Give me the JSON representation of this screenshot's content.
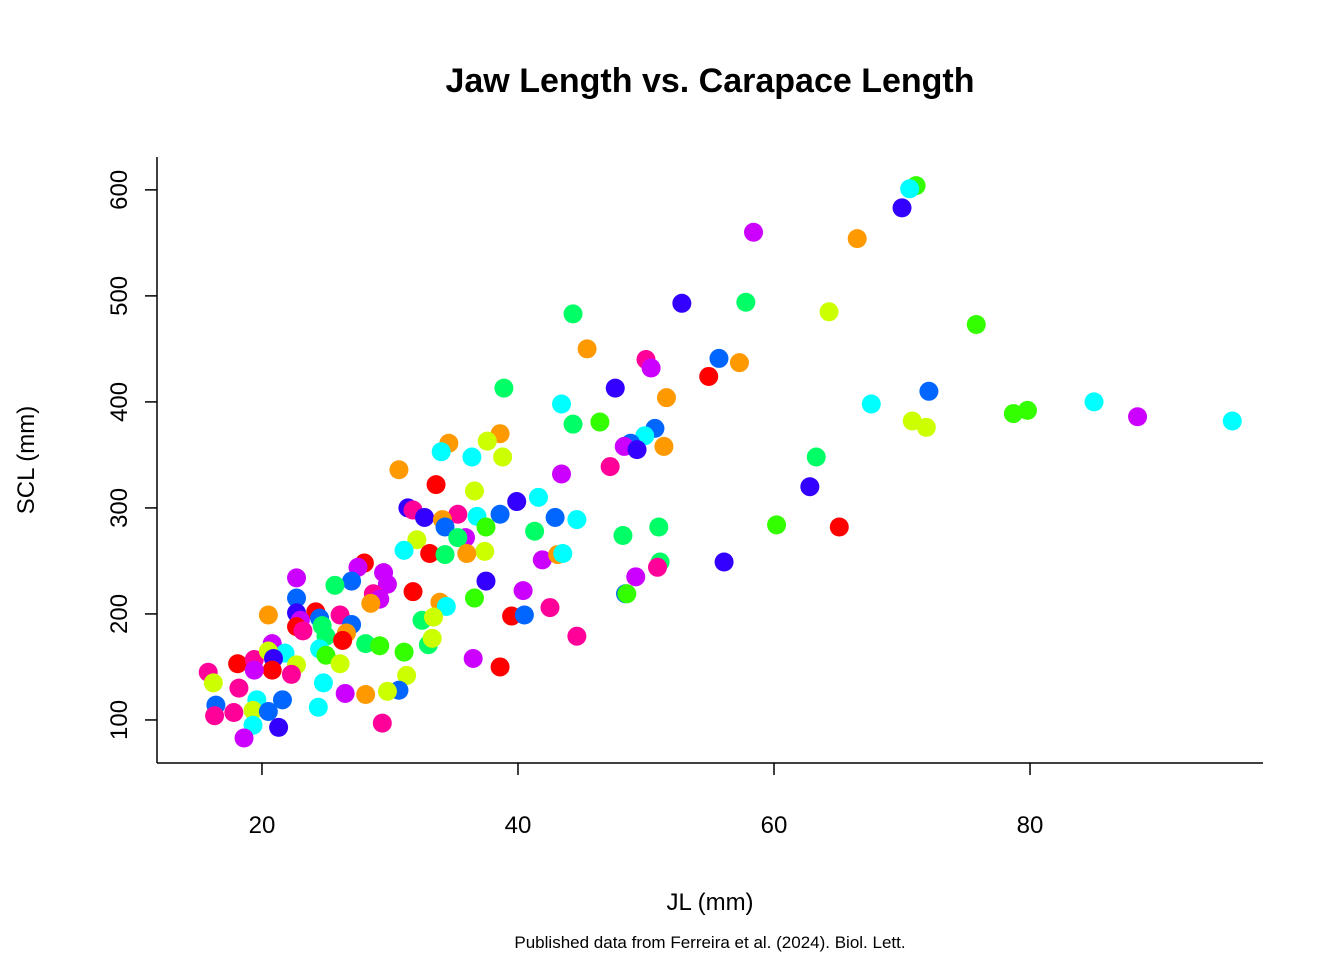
{
  "chart_data": {
    "type": "scatter",
    "title": "Jaw Length vs. Carapace Length",
    "xlabel": "JL (mm)",
    "ylabel": "SCL (mm)",
    "caption": "Published data from Ferreira et al. (2024). Biol. Lett.",
    "xlim": [
      11.8,
      98.2
    ],
    "ylim": [
      59.4,
      631
    ],
    "xticks": [
      "20",
      "40",
      "60",
      "80"
    ],
    "yticks": [
      "100",
      "200",
      "300",
      "400",
      "500",
      "600"
    ],
    "grid": false,
    "palette": [
      "#FF0000",
      "#FF9900",
      "#CCFF00",
      "#33FF00",
      "#00FF66",
      "#00FFFF",
      "#0066FF",
      "#3300FF",
      "#CC00FF",
      "#FF0099"
    ],
    "points": [
      [
        71.1,
        604,
        3
      ],
      [
        70.6,
        601,
        5
      ],
      [
        70.0,
        583,
        7
      ],
      [
        58.4,
        560,
        8
      ],
      [
        66.5,
        554,
        1
      ],
      [
        44.3,
        483,
        4
      ],
      [
        52.8,
        493,
        7
      ],
      [
        57.8,
        494,
        4
      ],
      [
        64.3,
        485,
        2
      ],
      [
        75.8,
        473,
        3
      ],
      [
        45.4,
        450,
        1
      ],
      [
        38.9,
        413,
        4
      ],
      [
        55.7,
        441,
        6
      ],
      [
        57.3,
        437,
        1
      ],
      [
        54.9,
        424,
        0
      ],
      [
        50.0,
        440,
        9
      ],
      [
        50.4,
        432,
        8
      ],
      [
        47.6,
        413,
        7
      ],
      [
        51.6,
        404,
        1
      ],
      [
        72.1,
        410,
        6
      ],
      [
        67.6,
        398,
        5
      ],
      [
        70.8,
        382,
        2
      ],
      [
        71.9,
        376,
        2
      ],
      [
        78.7,
        389,
        3
      ],
      [
        79.8,
        392,
        3
      ],
      [
        85.0,
        400,
        5
      ],
      [
        88.4,
        386,
        8
      ],
      [
        95.8,
        382,
        5
      ],
      [
        43.4,
        398,
        5
      ],
      [
        44.3,
        379,
        4
      ],
      [
        46.4,
        381,
        3
      ],
      [
        50.7,
        375,
        6
      ],
      [
        49.9,
        368,
        5
      ],
      [
        48.8,
        361,
        6
      ],
      [
        48.3,
        358,
        8
      ],
      [
        49.3,
        355,
        7
      ],
      [
        51.4,
        358,
        1
      ],
      [
        63.3,
        348,
        4
      ],
      [
        62.8,
        320,
        7
      ],
      [
        60.2,
        284,
        3
      ],
      [
        65.1,
        282,
        0
      ],
      [
        56.1,
        249,
        7
      ],
      [
        51.0,
        282,
        4
      ],
      [
        51.1,
        249,
        4
      ],
      [
        50.9,
        244,
        9
      ],
      [
        49.2,
        235,
        8
      ],
      [
        48.2,
        274,
        4
      ],
      [
        48.4,
        219,
        6
      ],
      [
        48.5,
        219,
        3
      ],
      [
        47.2,
        339,
        9
      ],
      [
        43.4,
        332,
        8
      ],
      [
        41.6,
        310,
        5
      ],
      [
        39.9,
        306,
        7
      ],
      [
        38.6,
        294,
        6
      ],
      [
        42.9,
        291,
        6
      ],
      [
        44.6,
        289,
        5
      ],
      [
        41.3,
        278,
        4
      ],
      [
        41.9,
        251,
        8
      ],
      [
        43.1,
        256,
        1
      ],
      [
        43.5,
        257,
        5
      ],
      [
        37.5,
        231,
        7
      ],
      [
        36.6,
        215,
        3
      ],
      [
        40.4,
        222,
        8
      ],
      [
        39.5,
        198,
        0
      ],
      [
        40.5,
        199,
        6
      ],
      [
        42.5,
        206,
        9
      ],
      [
        44.6,
        179,
        9
      ],
      [
        38.6,
        150,
        0
      ],
      [
        36.5,
        158,
        8
      ],
      [
        38.6,
        370,
        1
      ],
      [
        37.6,
        363,
        2
      ],
      [
        38.8,
        348,
        2
      ],
      [
        36.4,
        348,
        5
      ],
      [
        34.6,
        361,
        1
      ],
      [
        34.0,
        353,
        5
      ],
      [
        36.6,
        316,
        2
      ],
      [
        36.8,
        292,
        5
      ],
      [
        30.7,
        336,
        1
      ],
      [
        33.6,
        322,
        0
      ],
      [
        31.4,
        300,
        7
      ],
      [
        31.8,
        298,
        9
      ],
      [
        32.7,
        291,
        7
      ],
      [
        35.3,
        294,
        9
      ],
      [
        34.1,
        289,
        1
      ],
      [
        34.3,
        282,
        6
      ],
      [
        37.5,
        282,
        3
      ],
      [
        35.9,
        272,
        8
      ],
      [
        35.3,
        272,
        4
      ],
      [
        32.1,
        270,
        2
      ],
      [
        37.4,
        259,
        2
      ],
      [
        31.1,
        260,
        5
      ],
      [
        33.1,
        257,
        0
      ],
      [
        34.3,
        256,
        4
      ],
      [
        36.0,
        257,
        1
      ],
      [
        28.0,
        248,
        0
      ],
      [
        27.5,
        244,
        8
      ],
      [
        29.5,
        239,
        8
      ],
      [
        22.7,
        234,
        8
      ],
      [
        27.0,
        231,
        6
      ],
      [
        25.7,
        227,
        4
      ],
      [
        29.8,
        228,
        8
      ],
      [
        28.7,
        219,
        9
      ],
      [
        29.2,
        214,
        8
      ],
      [
        31.8,
        221,
        0
      ],
      [
        33.9,
        211,
        1
      ],
      [
        34.4,
        207,
        5
      ],
      [
        22.7,
        215,
        6
      ],
      [
        20.5,
        199,
        1
      ],
      [
        22.7,
        201,
        7
      ],
      [
        24.2,
        202,
        0
      ],
      [
        24.5,
        196,
        6
      ],
      [
        26.1,
        199,
        9
      ],
      [
        28.5,
        210,
        1
      ],
      [
        32.5,
        194,
        4
      ],
      [
        33.4,
        197,
        2
      ],
      [
        23.0,
        194,
        8
      ],
      [
        24.7,
        189,
        4
      ],
      [
        27.0,
        190,
        6
      ],
      [
        22.7,
        188,
        0
      ],
      [
        23.2,
        184,
        9
      ],
      [
        26.6,
        182,
        1
      ],
      [
        25.0,
        179,
        4
      ],
      [
        28.1,
        172,
        4
      ],
      [
        29.2,
        170,
        3
      ],
      [
        33.0,
        171,
        4
      ],
      [
        33.3,
        177,
        2
      ],
      [
        31.1,
        164,
        3
      ],
      [
        26.3,
        175,
        0
      ],
      [
        18.1,
        153,
        0
      ],
      [
        19.4,
        157,
        9
      ],
      [
        20.8,
        172,
        8
      ],
      [
        21.8,
        163,
        5
      ],
      [
        20.5,
        165,
        2
      ],
      [
        20.9,
        158,
        7
      ],
      [
        24.5,
        167,
        5
      ],
      [
        25.0,
        161,
        3
      ],
      [
        26.1,
        153,
        2
      ],
      [
        22.7,
        152,
        2
      ],
      [
        20.8,
        147,
        0
      ],
      [
        22.3,
        143,
        9
      ],
      [
        19.4,
        147,
        8
      ],
      [
        15.8,
        145,
        9
      ],
      [
        16.2,
        135,
        2
      ],
      [
        18.2,
        130,
        9
      ],
      [
        31.3,
        142,
        2
      ],
      [
        24.8,
        135,
        5
      ],
      [
        26.5,
        125,
        8
      ],
      [
        28.1,
        124,
        1
      ],
      [
        30.7,
        128,
        6
      ],
      [
        29.8,
        127,
        2
      ],
      [
        21.6,
        119,
        6
      ],
      [
        19.6,
        119,
        5
      ],
      [
        16.4,
        114,
        6
      ],
      [
        16.3,
        104,
        9
      ],
      [
        17.8,
        107,
        9
      ],
      [
        19.3,
        109,
        2
      ],
      [
        20.5,
        108,
        6
      ],
      [
        24.4,
        112,
        5
      ],
      [
        19.3,
        95,
        5
      ],
      [
        21.3,
        93,
        7
      ],
      [
        29.4,
        97,
        9
      ],
      [
        18.6,
        83,
        8
      ]
    ]
  }
}
